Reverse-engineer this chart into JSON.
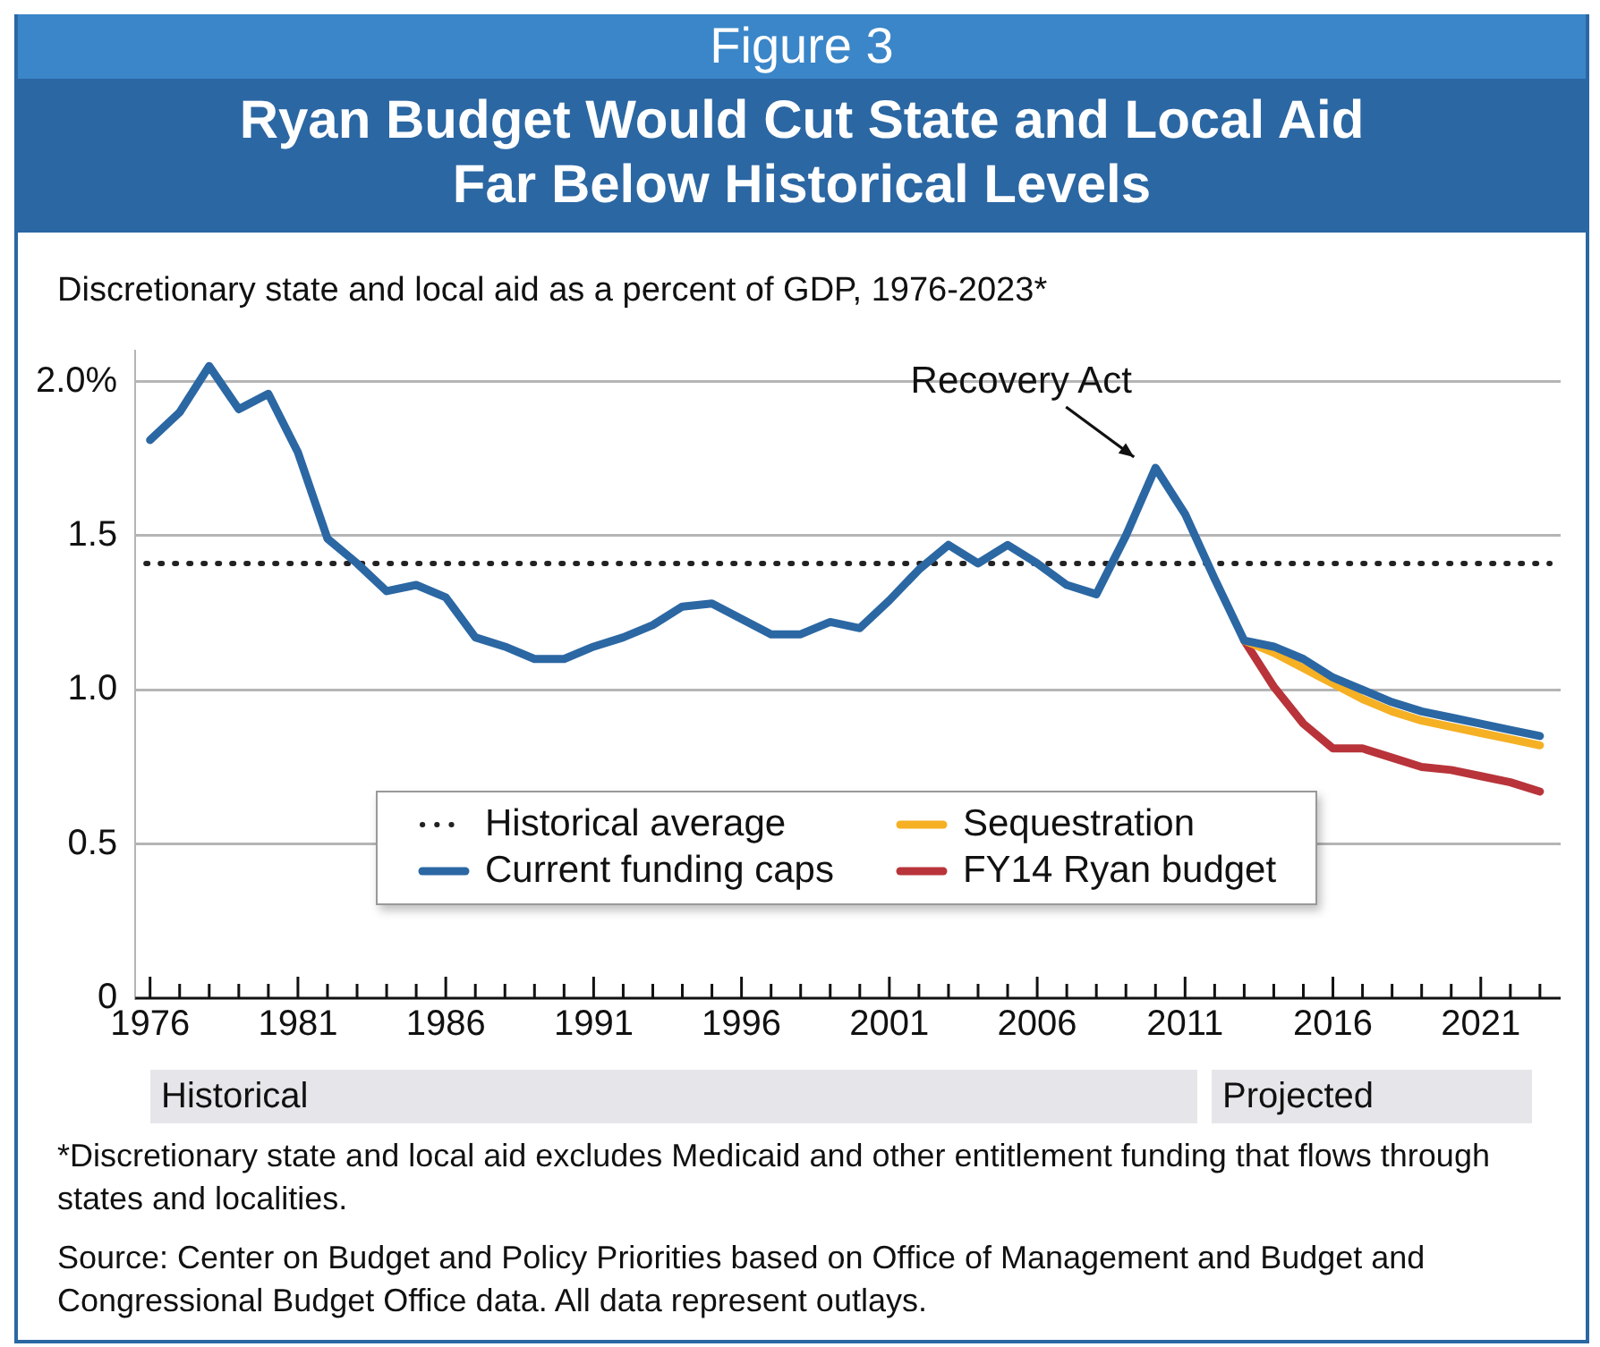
{
  "chart_data": {
    "type": "line",
    "subtitle": "Figure 3",
    "title": "Ryan Budget Would Cut State and Local Aid\nFar Below Historical Levels",
    "ylabel": "Discretionary state and local aid as a percent of GDP, 1976-2023*",
    "x": [
      1976,
      1977,
      1978,
      1979,
      1980,
      1981,
      1982,
      1983,
      1984,
      1985,
      1986,
      1987,
      1988,
      1989,
      1990,
      1991,
      1992,
      1993,
      1994,
      1995,
      1996,
      1997,
      1998,
      1999,
      2000,
      2001,
      2002,
      2003,
      2004,
      2005,
      2006,
      2007,
      2008,
      2009,
      2010,
      2011,
      2012,
      2013,
      2014,
      2015,
      2016,
      2017,
      2018,
      2019,
      2020,
      2021,
      2022,
      2023
    ],
    "series": [
      {
        "name": "Current funding caps",
        "color": "#2b67a3",
        "values": [
          1.81,
          1.9,
          2.05,
          1.91,
          1.96,
          1.77,
          1.49,
          1.41,
          1.32,
          1.34,
          1.3,
          1.17,
          1.14,
          1.1,
          1.1,
          1.14,
          1.17,
          1.21,
          1.27,
          1.28,
          1.23,
          1.18,
          1.18,
          1.22,
          1.2,
          1.29,
          1.39,
          1.47,
          1.41,
          1.47,
          1.41,
          1.34,
          1.31,
          1.5,
          1.72,
          1.57,
          1.36,
          1.16,
          1.14,
          1.1,
          1.04,
          1.0,
          0.96,
          0.93,
          0.91,
          0.89,
          0.87,
          0.85
        ]
      },
      {
        "name": "Sequestration",
        "color": "#f5b024",
        "x": [
          2013,
          2014,
          2015,
          2016,
          2017,
          2018,
          2019,
          2020,
          2021,
          2022,
          2023
        ],
        "values": [
          1.16,
          1.12,
          1.07,
          1.02,
          0.97,
          0.93,
          0.9,
          0.88,
          0.86,
          0.84,
          0.82
        ]
      },
      {
        "name": "FY14 Ryan budget",
        "color": "#b8343a",
        "x": [
          2013,
          2014,
          2015,
          2016,
          2017,
          2018,
          2019,
          2020,
          2021,
          2022,
          2023
        ],
        "values": [
          1.16,
          1.01,
          0.89,
          0.81,
          0.81,
          0.78,
          0.75,
          0.74,
          0.72,
          0.7,
          0.67
        ]
      }
    ],
    "xlim": [
      1975.5,
      2023.7
    ],
    "xticks": [
      1976,
      {
        "value": 1977,
        "label": null
      },
      {
        "value": 1978,
        "label": null
      },
      {
        "value": 1979,
        "label": null
      },
      {
        "value": 1980,
        "label": null
      },
      1981,
      {
        "value": 1982,
        "label": null
      },
      {
        "value": 1983,
        "label": null
      },
      {
        "value": 1984,
        "label": null
      },
      {
        "value": 1985,
        "label": null
      },
      1986,
      {
        "value": 1987,
        "label": null
      },
      {
        "value": 1988,
        "label": null
      },
      {
        "value": 1989,
        "label": null
      },
      {
        "value": 1990,
        "label": null
      },
      1991,
      {
        "value": 1992,
        "label": null
      },
      {
        "value": 1993,
        "label": null
      },
      {
        "value": 1994,
        "label": null
      },
      {
        "value": 1995,
        "label": null
      },
      1996,
      {
        "value": 1997,
        "label": null
      },
      {
        "value": 1998,
        "label": null
      },
      {
        "value": 1999,
        "label": null
      },
      {
        "value": 2000,
        "label": null
      },
      2001,
      {
        "value": 2002,
        "label": null
      },
      {
        "value": 2003,
        "label": null
      },
      {
        "value": 2004,
        "label": null
      },
      {
        "value": 2005,
        "label": null
      },
      2006,
      {
        "value": 2007,
        "label": null
      },
      {
        "value": 2008,
        "label": null
      },
      {
        "value": 2009,
        "label": null
      },
      {
        "value": 2010,
        "label": null
      },
      2011,
      {
        "value": 2012,
        "label": null
      },
      {
        "value": 2013,
        "label": null
      },
      {
        "value": 2014,
        "label": null
      },
      {
        "value": 2015,
        "label": null
      },
      2016,
      {
        "value": 2017,
        "label": null
      },
      {
        "value": 2018,
        "label": null
      },
      {
        "value": 2019,
        "label": null
      },
      {
        "value": 2020,
        "label": null
      },
      2021,
      {
        "value": 2022,
        "label": null
      },
      {
        "value": 2023,
        "label": null
      }
    ],
    "ylim": [
      0,
      2.1
    ],
    "yticks": [
      0,
      0.5,
      {
        "value": 1,
        "label": "1.0"
      },
      1.5,
      {
        "value": 2,
        "label": "2.0%"
      }
    ],
    "grid": "y",
    "marker": "none",
    "line_style": "solid",
    "legend": "bottom",
    "ref_lines": [
      {
        "axis": "y",
        "value": 1.41,
        "label": "Historical average",
        "color": "#222222",
        "line_style": "dotted"
      }
    ],
    "annotations": [
      {
        "text": "Recovery Act",
        "x": 2010,
        "y": 1.72
      },
      "Historical",
      "Projected",
      "*Discretionary state and local aid excludes Medicaid and other entitlement funding that flows through states and localities.",
      "Source: Center on Budget and Policy Priorities based on Office of Management and Budget and Congressional Budget Office data. All data represent outlays."
    ]
  }
}
